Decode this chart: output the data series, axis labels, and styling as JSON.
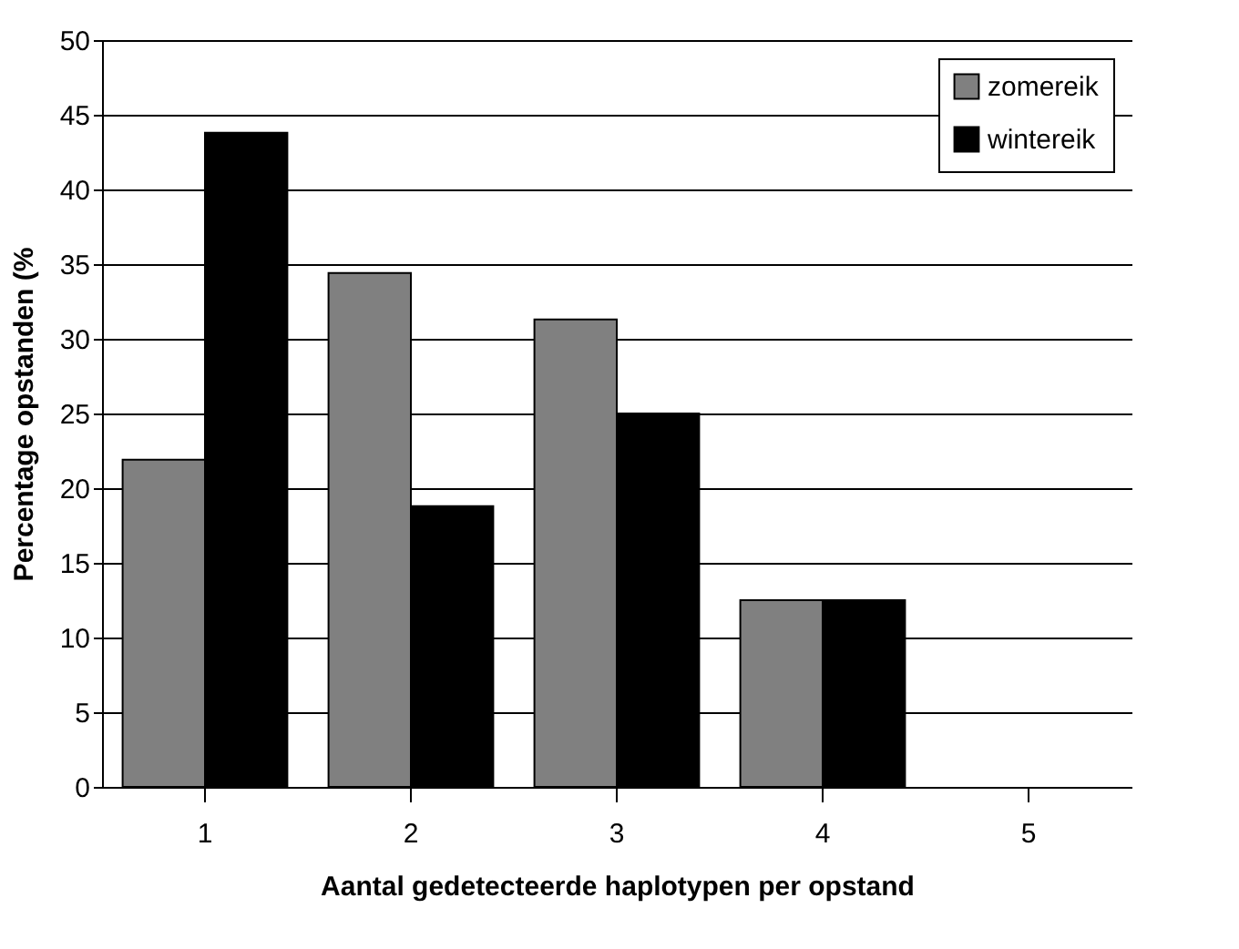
{
  "chart_data": {
    "type": "bar",
    "xlabel": "Aantal gedetecteerde haplotypen per opstand",
    "ylabel": "Percentage opstanden (%",
    "categories": [
      "1",
      "2",
      "3",
      "4",
      "5"
    ],
    "series": [
      {
        "name": "zomereik",
        "color": "#808080",
        "values": [
          21.9,
          34.4,
          31.3,
          12.5,
          0
        ]
      },
      {
        "name": "wintereik",
        "color": "#000000",
        "values": [
          43.8,
          18.8,
          25,
          12.5,
          0
        ]
      }
    ],
    "ylim": [
      0,
      50
    ],
    "yticks": [
      0,
      5,
      10,
      15,
      20,
      25,
      30,
      35,
      40,
      45,
      50
    ],
    "grid": "y",
    "legend": "top right"
  }
}
